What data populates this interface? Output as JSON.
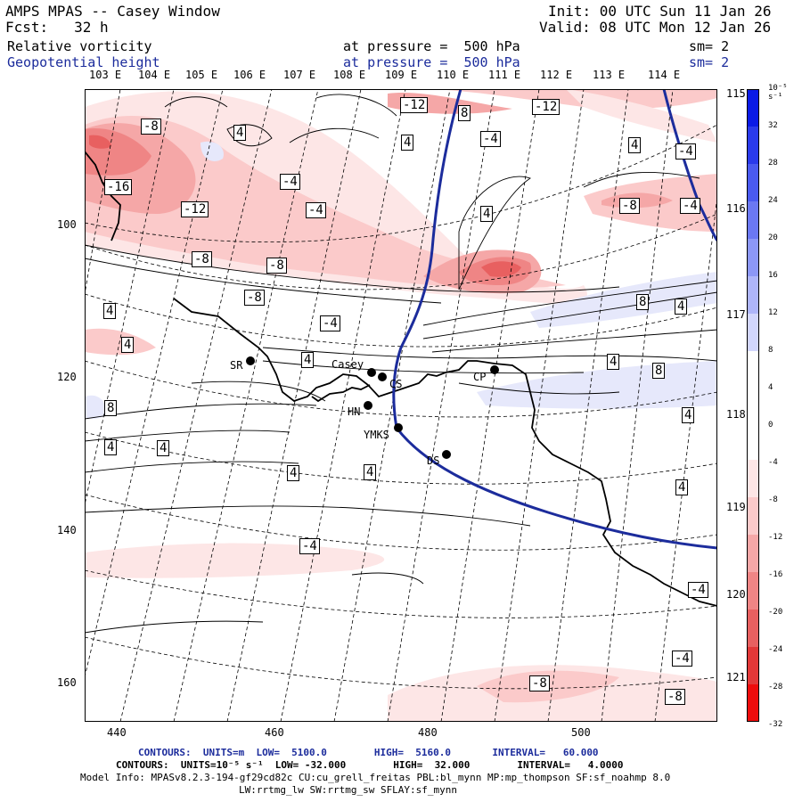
{
  "header": {
    "title": "AMPS MPAS -- Casey Window",
    "fcst": "Fcst:   32 h",
    "init": "Init: 00 UTC Sun 11 Jan 26",
    "valid": "Valid: 08 UTC Mon 12 Jan 26",
    "field1": "Relative vorticity",
    "field1_level": "at pressure =  500 hPa",
    "field1_sm": "sm= 2",
    "field2": "Geopotential height",
    "field2_level": "at pressure =  500 hPa",
    "field2_sm": "sm= 2"
  },
  "colors": {
    "contour_blue": "#1c2c9c",
    "frame": "#000000"
  },
  "longitude_labels_top": [
    "103 E",
    "104 E",
    "105 E",
    "106 E",
    "107 E",
    "108 E",
    "109 E",
    "110 E",
    "111 E",
    "112 E",
    "113 E",
    "114 E"
  ],
  "latitude_labels_right": [
    "115 E",
    "116 E",
    "117 E",
    "118 E",
    "119 E",
    "120 E",
    "121 E"
  ],
  "grid_x_labels": [
    "440",
    "460",
    "480",
    "500"
  ],
  "grid_y_labels": [
    "100",
    "120",
    "140",
    "160"
  ],
  "colorbar": {
    "unit": "10⁻⁵ s⁻¹",
    "labels": [
      "32",
      "28",
      "24",
      "20",
      "16",
      "12",
      "8",
      "4",
      "0",
      "-4",
      "-8",
      "-12",
      "-16",
      "-20",
      "-24",
      "-28",
      "-32"
    ]
  },
  "stations": [
    {
      "id": "SR",
      "label": "SR"
    },
    {
      "id": "casey",
      "label": "Casey"
    },
    {
      "id": "CS",
      "label": "CS"
    },
    {
      "id": "HN",
      "label": "HN"
    },
    {
      "id": "YMKS",
      "label": "YMKS"
    },
    {
      "id": "CP",
      "label": "CP"
    },
    {
      "id": "DS",
      "label": "DS"
    }
  ],
  "contour_labels": [
    "-8",
    "4",
    "-12",
    "8",
    "-12",
    "-4",
    "4",
    "4",
    "-4",
    "-16",
    "-4",
    "-4",
    "4",
    "-12",
    "-8",
    "-4",
    "-8",
    "-8",
    "-4",
    "-8",
    "4",
    "8",
    "4",
    "4",
    "4",
    "4",
    "8",
    "4",
    "8",
    "4",
    "4",
    "4",
    "4",
    "4",
    "-4",
    "-4",
    "-8",
    "-4",
    "-8"
  ],
  "footer": {
    "contours1": "CONTOURS:  UNITS=m  LOW=  5100.0        HIGH=  5160.0       INTERVAL=   60.000",
    "contours2": "CONTOURS:  UNITS=10⁻⁵ s⁻¹  LOW= -32.000        HIGH=  32.000        INTERVAL=   4.0000",
    "model_info": "Model Info: MPASv8.2.3-194-gf29cd82c CU:cu_grell_freitas PBL:bl_mynn MP:mp_thompson SF:sf_noahmp 8.0",
    "model_info2": "LW:rrtmg_lw SW:rrtmg_sw SFLAY:sf_mynn"
  }
}
